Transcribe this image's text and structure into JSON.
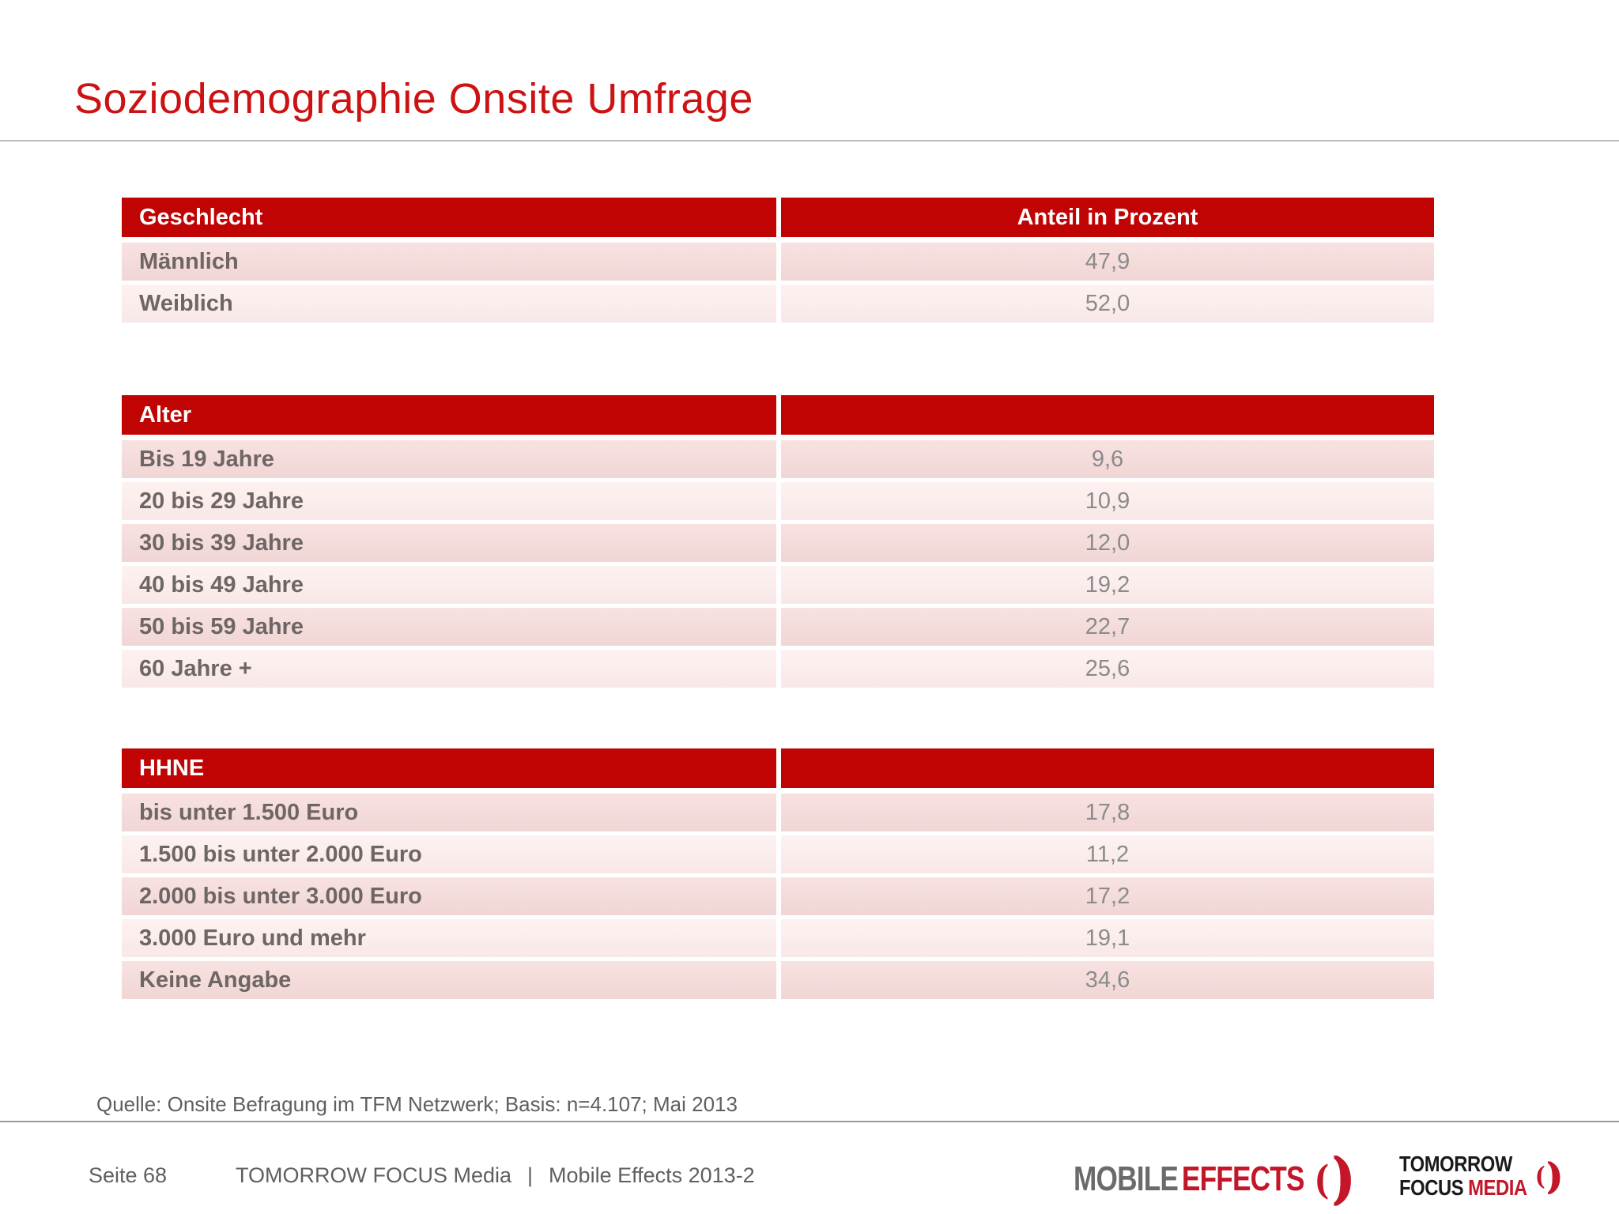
{
  "title": "Soziodemographie Onsite Umfrage",
  "tables": [
    {
      "header": "Geschlecht",
      "value_header": "Anteil in Prozent",
      "rows": [
        {
          "label": "Männlich",
          "value": "47,9"
        },
        {
          "label": "Weiblich",
          "value": "52,0"
        }
      ]
    },
    {
      "header": "Alter",
      "value_header": "",
      "rows": [
        {
          "label": "Bis 19 Jahre",
          "value": "9,6"
        },
        {
          "label": "20 bis 29 Jahre",
          "value": "10,9"
        },
        {
          "label": "30 bis 39 Jahre",
          "value": "12,0"
        },
        {
          "label": "40 bis 49 Jahre",
          "value": "19,2"
        },
        {
          "label": "50 bis 59 Jahre",
          "value": "22,7"
        },
        {
          "label": "60 Jahre +",
          "value": "25,6"
        }
      ]
    },
    {
      "header": "HHNE",
      "value_header": "",
      "rows": [
        {
          "label": "bis unter 1.500 Euro",
          "value": "17,8"
        },
        {
          "label": "1.500 bis unter 2.000 Euro",
          "value": "11,2"
        },
        {
          "label": "2.000 bis unter 3.000 Euro",
          "value": "17,2"
        },
        {
          "label": "3.000 Euro und mehr",
          "value": "19,1"
        },
        {
          "label": "Keine Angabe",
          "value": "34,6"
        }
      ]
    }
  ],
  "source_note": "Quelle: Onsite Befragung im TFM Netzwerk; Basis: n=4.107; Mai 2013",
  "footer": {
    "page": "Seite 68",
    "brand": "TOMORROW FOCUS Media",
    "separator": "|",
    "document": "Mobile Effects 2013-2"
  },
  "logos": {
    "mobile_effects": {
      "part1": "MOBILE",
      "part2": "EFFECTS",
      "mark_open": "(",
      "mark_close": ")"
    },
    "tomorrow_focus_media": {
      "line1": "TOMORROW",
      "line2_black": "FOCUS",
      "line2_red": "MEDIA",
      "mark_open": "(",
      "mark_close": ")"
    }
  },
  "colors": {
    "header_red": "#c00404",
    "title_red": "#cc1212",
    "row_dark": "#f4dbda",
    "row_light": "#fbecec",
    "label_gray": "#6e6664",
    "value_gray": "#8b8b8b",
    "footer_gray": "#5f5f5f",
    "logo_red": "#c31628",
    "logo_gray": "#6b6b6b"
  }
}
